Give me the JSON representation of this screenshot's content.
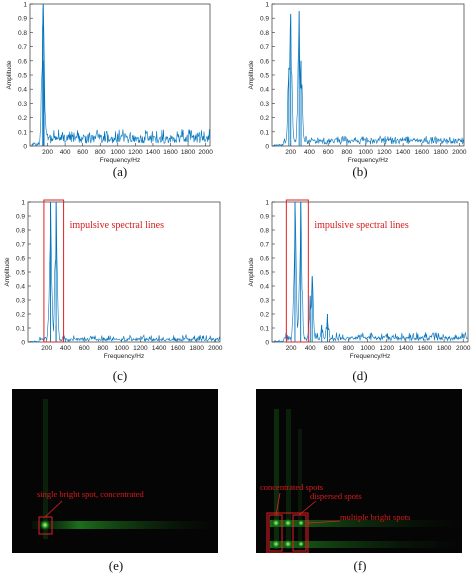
{
  "chart_data": [
    {
      "id": "a",
      "type": "line",
      "caption": "(a)",
      "xlabel": "Frequency/Hz",
      "ylabel": "Amplitude",
      "xlim": [
        0,
        2050
      ],
      "ylim": [
        0,
        1
      ],
      "xticks": [
        200,
        400,
        600,
        800,
        1000,
        1200,
        1400,
        1600,
        1800,
        2000
      ],
      "yticks": [
        0,
        0.1,
        0.2,
        0.3,
        0.4,
        0.5,
        0.6,
        0.7,
        0.8,
        0.9,
        1
      ],
      "color": "#0072bd",
      "peaks": [
        {
          "x": 150,
          "y": 1.0
        },
        {
          "x": 145,
          "y": 0.85
        },
        {
          "x": 160,
          "y": 0.6
        }
      ],
      "noise_floor": 0.06,
      "noise_max": 0.12
    },
    {
      "id": "b",
      "type": "line",
      "caption": "(b)",
      "xlabel": "Frequency/Hz",
      "ylabel": "Amplitude",
      "xlim": [
        0,
        2050
      ],
      "ylim": [
        0,
        1
      ],
      "xticks": [
        200,
        400,
        600,
        800,
        1000,
        1200,
        1400,
        1600,
        1800,
        2000
      ],
      "yticks": [
        0,
        0.1,
        0.2,
        0.3,
        0.4,
        0.5,
        0.6,
        0.7,
        0.8,
        0.9,
        1
      ],
      "color": "#0072bd",
      "peaks": [
        {
          "x": 200,
          "y": 0.93
        },
        {
          "x": 180,
          "y": 0.55
        },
        {
          "x": 290,
          "y": 0.95
        },
        {
          "x": 310,
          "y": 0.6
        }
      ],
      "noise_floor": 0.04,
      "noise_max": 0.07
    },
    {
      "id": "c",
      "type": "line",
      "caption": "(c)",
      "xlabel": "Frequency/Hz",
      "ylabel": "Amplitude",
      "xlim": [
        0,
        2050
      ],
      "ylim": [
        0,
        1
      ],
      "xticks": [
        200,
        400,
        600,
        800,
        1000,
        1200,
        1400,
        1600,
        1800,
        2000
      ],
      "yticks": [
        0,
        0.1,
        0.2,
        0.3,
        0.4,
        0.5,
        0.6,
        0.7,
        0.8,
        0.9,
        1
      ],
      "color": "#0072bd",
      "peaks": [
        {
          "x": 240,
          "y": 1.0
        },
        {
          "x": 300,
          "y": 1.0
        },
        {
          "x": 300,
          "y": 0.12
        }
      ],
      "noise_floor": 0.02,
      "noise_max": 0.05,
      "annotation": "impulsive spectral lines",
      "highlight_x": [
        170,
        380
      ]
    },
    {
      "id": "d",
      "type": "line",
      "caption": "(d)",
      "xlabel": "Frequency/Hz",
      "ylabel": "Amplitude",
      "xlim": [
        0,
        2050
      ],
      "ylim": [
        0,
        1
      ],
      "xticks": [
        200,
        400,
        600,
        800,
        1000,
        1200,
        1400,
        1600,
        1800,
        2000
      ],
      "yticks": [
        0,
        0.1,
        0.2,
        0.3,
        0.4,
        0.5,
        0.6,
        0.7,
        0.8,
        0.9,
        1
      ],
      "color": "#0072bd",
      "peaks": [
        {
          "x": 240,
          "y": 1.0
        },
        {
          "x": 300,
          "y": 1.0
        },
        {
          "x": 420,
          "y": 0.47
        },
        {
          "x": 400,
          "y": 0.33
        },
        {
          "x": 580,
          "y": 0.2
        },
        {
          "x": 520,
          "y": 0.12
        }
      ],
      "noise_floor": 0.03,
      "noise_max": 0.07,
      "annotation": "impulsive spectral lines",
      "highlight_x": [
        150,
        380
      ]
    }
  ],
  "images": [
    {
      "id": "e",
      "caption": "(e)",
      "label": "single bright spot, concentrated"
    },
    {
      "id": "f",
      "caption": "(f)",
      "labels": [
        "concentrated spots",
        "dispersed spots",
        "multiple bright spots"
      ]
    }
  ]
}
